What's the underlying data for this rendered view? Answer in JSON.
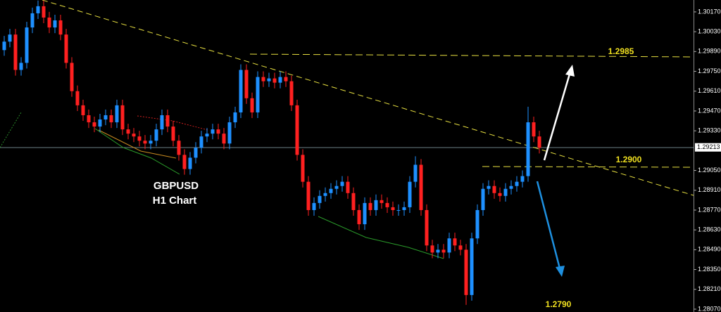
{
  "chart_data": {
    "type": "candlestick",
    "up_color": "#1e90ff",
    "down_color": "#ff2020",
    "open": [
      1.299,
      1.2996,
      1.3001,
      1.2976,
      1.2981,
      1.3006,
      1.3016,
      1.3021,
      1.3013,
      1.3006,
      1.3011,
      1.3001,
      1.2981,
      1.2961,
      1.2951,
      1.2944,
      1.2939,
      1.2936,
      1.2941,
      1.2944,
      1.2939,
      1.2951,
      1.2934,
      1.2931,
      1.2929,
      1.2926,
      1.2924,
      1.2926,
      1.2934,
      1.2944,
      1.2936,
      1.2926,
      1.2916,
      1.2906,
      1.2914,
      1.2921,
      1.2929,
      1.2931,
      1.2934,
      1.2931,
      1.2924,
      1.2939,
      1.2946,
      1.2976,
      1.2956,
      1.2946,
      1.2971,
      1.2968,
      1.297,
      1.2967,
      1.2971,
      1.2968,
      1.2951,
      1.2916,
      1.2897,
      1.2877,
      1.2882,
      1.2887,
      1.2889,
      1.2892,
      1.2894,
      1.2897,
      1.2889,
      1.2877,
      1.2867,
      1.2882,
      1.2877,
      1.2884,
      1.2882,
      1.2879,
      1.2877,
      1.2877,
      1.2879,
      1.2897,
      1.2909,
      1.2877,
      1.2852,
      1.2847,
      1.2849,
      1.2847,
      1.2857,
      1.2852,
      1.2849,
      1.2817,
      1.2857,
      1.2877,
      1.2892,
      1.2894,
      1.2889,
      1.2887,
      1.2892,
      1.2894,
      1.2897,
      1.2901,
      1.2939,
      1.2929
    ],
    "high": [
      1.3,
      1.3005,
      1.3005,
      1.2985,
      1.301,
      1.302,
      1.3025,
      1.3025,
      1.3017,
      1.3015,
      1.3015,
      1.3005,
      1.2985,
      1.2965,
      1.2955,
      1.2948,
      1.2943,
      1.2945,
      1.2948,
      1.2948,
      1.2955,
      1.2955,
      1.2938,
      1.2935,
      1.2933,
      1.293,
      1.293,
      1.2938,
      1.2948,
      1.2948,
      1.294,
      1.293,
      1.292,
      1.2918,
      1.2925,
      1.2933,
      1.2935,
      1.2938,
      1.2938,
      1.2935,
      1.2943,
      1.295,
      1.298,
      1.298,
      1.296,
      1.2975,
      1.2975,
      1.2974,
      1.2974,
      1.2975,
      1.2975,
      1.2972,
      1.2955,
      1.292,
      1.2901,
      1.2886,
      1.2891,
      1.2893,
      1.2896,
      1.2898,
      1.2901,
      1.2901,
      1.2893,
      1.2881,
      1.2886,
      1.2886,
      1.2888,
      1.2888,
      1.2886,
      1.2883,
      1.2881,
      1.2883,
      1.2901,
      1.2915,
      1.2913,
      1.2881,
      1.2856,
      1.2853,
      1.2853,
      1.2861,
      1.2861,
      1.2856,
      1.2853,
      1.2861,
      1.2881,
      1.2896,
      1.2898,
      1.2898,
      1.2893,
      1.2896,
      1.2898,
      1.2901,
      1.2905,
      1.295,
      1.2943,
      1.2933
    ],
    "low": [
      1.2986,
      1.2992,
      1.2972,
      1.2972,
      1.2977,
      1.3002,
      1.3012,
      1.3009,
      1.3002,
      1.3002,
      1.2997,
      1.2977,
      1.2957,
      1.2947,
      1.294,
      1.2935,
      1.2932,
      1.2932,
      1.2937,
      1.2935,
      1.2935,
      1.293,
      1.2927,
      1.2925,
      1.2922,
      1.292,
      1.292,
      1.2922,
      1.293,
      1.2932,
      1.2922,
      1.2912,
      1.2902,
      1.2902,
      1.291,
      1.2917,
      1.2925,
      1.2927,
      1.2927,
      1.292,
      1.292,
      1.2935,
      1.2942,
      1.2952,
      1.2942,
      1.2942,
      1.2964,
      1.2964,
      1.2963,
      1.2963,
      1.2964,
      1.2947,
      1.2912,
      1.2893,
      1.2873,
      1.2873,
      1.2878,
      1.2883,
      1.2885,
      1.2888,
      1.289,
      1.2885,
      1.2873,
      1.2863,
      1.2863,
      1.2873,
      1.2873,
      1.2878,
      1.2875,
      1.2873,
      1.2873,
      1.2873,
      1.2875,
      1.2893,
      1.2873,
      1.2848,
      1.2843,
      1.2843,
      1.2843,
      1.2843,
      1.2848,
      1.2845,
      1.281,
      1.2813,
      1.2853,
      1.2873,
      1.2888,
      1.2885,
      1.2883,
      1.2883,
      1.2888,
      1.289,
      1.2893,
      1.2897,
      1.2925,
      1.2917
    ],
    "close": [
      1.2996,
      1.3001,
      1.2976,
      1.2981,
      1.3006,
      1.3016,
      1.3021,
      1.3013,
      1.3006,
      1.3011,
      1.3001,
      1.2981,
      1.2961,
      1.2951,
      1.2944,
      1.2939,
      1.2936,
      1.2941,
      1.2944,
      1.2939,
      1.2951,
      1.2934,
      1.2931,
      1.2929,
      1.2926,
      1.2924,
      1.2926,
      1.2934,
      1.2944,
      1.2936,
      1.2926,
      1.2916,
      1.2906,
      1.2914,
      1.2921,
      1.2929,
      1.2931,
      1.2934,
      1.2931,
      1.2924,
      1.2939,
      1.2946,
      1.2976,
      1.2956,
      1.2946,
      1.2971,
      1.2968,
      1.297,
      1.2967,
      1.2971,
      1.2968,
      1.2951,
      1.2916,
      1.2897,
      1.2877,
      1.2882,
      1.2887,
      1.2889,
      1.2892,
      1.2894,
      1.2897,
      1.2889,
      1.2877,
      1.2867,
      1.2882,
      1.2877,
      1.2884,
      1.2882,
      1.2879,
      1.2877,
      1.2877,
      1.2879,
      1.2897,
      1.2909,
      1.2877,
      1.2852,
      1.2847,
      1.2849,
      1.2847,
      1.2857,
      1.2852,
      1.2849,
      1.2817,
      1.2857,
      1.2877,
      1.2892,
      1.2894,
      1.2889,
      1.2887,
      1.2892,
      1.2894,
      1.2897,
      1.2901,
      1.2939,
      1.2929,
      1.2921
    ],
    "ylim": [
      1.2805,
      1.30254
    ],
    "yticks": [
      {
        "value": 1.3017,
        "label": "1.30170"
      },
      {
        "value": 1.3003,
        "label": "1.30030"
      },
      {
        "value": 1.2989,
        "label": "1.29890"
      },
      {
        "value": 1.2975,
        "label": "1.29750"
      },
      {
        "value": 1.2961,
        "label": "1.29610"
      },
      {
        "value": 1.2947,
        "label": "1.29470"
      },
      {
        "value": 1.2933,
        "label": "1.29330"
      },
      {
        "value": 1.2905,
        "label": "1.29050"
      },
      {
        "value": 1.2891,
        "label": "1.28910"
      },
      {
        "value": 1.2877,
        "label": "1.28770"
      },
      {
        "value": 1.2863,
        "label": "1.28630"
      },
      {
        "value": 1.2849,
        "label": "1.28490"
      },
      {
        "value": 1.2835,
        "label": "1.28350"
      },
      {
        "value": 1.2821,
        "label": "1.28210"
      },
      {
        "value": 1.2807,
        "label": "1.28070"
      }
    ],
    "last_price": 1.29213,
    "annotations": [
      "GBPUSD",
      "H1 Chart",
      "1.2985",
      "1.2900",
      "1.2790"
    ]
  }
}
